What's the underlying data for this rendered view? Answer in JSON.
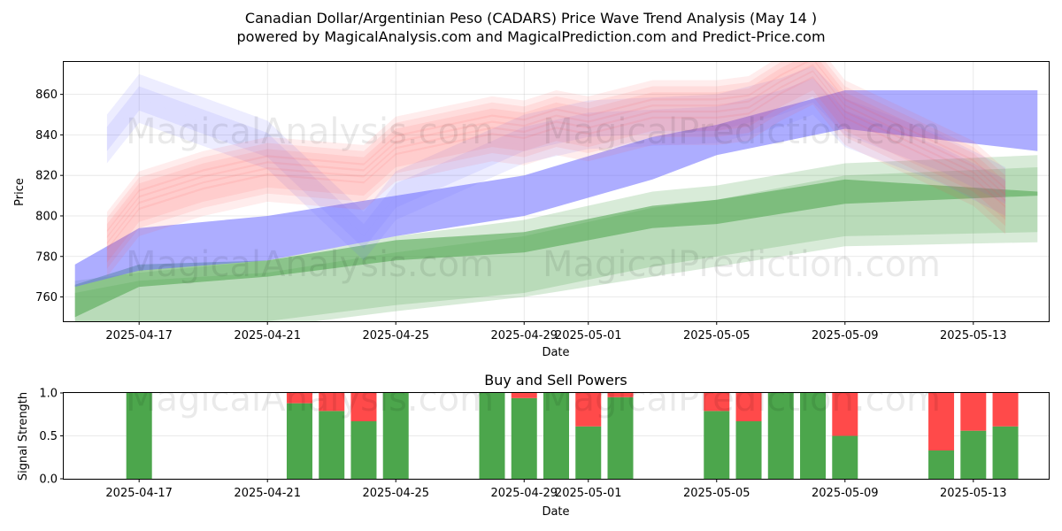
{
  "chart_data": [
    {
      "type": "area",
      "title_line1": "Canadian Dollar/Argentinian Peso (CADARS) Price Wave Trend Analysis (May 14 )",
      "title_line2": "powered by MagicalAnalysis.com and MagicalPrediction.com and Predict-Price.com",
      "xlabel": "Date",
      "ylabel": "Price",
      "x_tick_labels": [
        "2025-04-17",
        "2025-04-21",
        "2025-04-25",
        "2025-04-29",
        "2025-05-01",
        "2025-05-05",
        "2025-05-09",
        "2025-05-13"
      ],
      "x_tick_days": [
        2,
        6,
        10,
        14,
        16,
        20,
        24,
        28
      ],
      "x_range_days": [
        -0.35,
        30.35
      ],
      "y_ticks": [
        760,
        780,
        800,
        820,
        840,
        860
      ],
      "y_range": [
        748,
        876
      ],
      "watermarks": [
        "MagicalAnalysis.com",
        "MagicalPrediction.com"
      ],
      "colors": {
        "red": "#ff4a4a",
        "blue": "#6a6aff",
        "green": "#4ca64c"
      },
      "blue_band": {
        "days": [
          0,
          2,
          6,
          10,
          14,
          18,
          20,
          24,
          30
        ],
        "low": [
          765,
          773,
          778,
          790,
          800,
          818,
          830,
          843,
          832
        ],
        "high": [
          776,
          794,
          800,
          810,
          820,
          839,
          845,
          862,
          862
        ]
      },
      "green_bands": [
        {
          "days": [
            0,
            2,
            6,
            10,
            14,
            18,
            20,
            24,
            30
          ],
          "low": [
            750,
            765,
            770,
            778,
            782,
            794,
            796,
            806,
            810
          ],
          "high": [
            766,
            776,
            778,
            788,
            792,
            805,
            808,
            818,
            812
          ]
        },
        {
          "days": [
            0,
            2,
            6,
            10,
            14,
            18,
            20,
            24,
            30
          ],
          "low": [
            742,
            745,
            748,
            756,
            762,
            775,
            780,
            790,
            792
          ],
          "high": [
            768,
            772,
            778,
            790,
            798,
            812,
            815,
            826,
            830
          ]
        },
        {
          "days": [
            0,
            2,
            6,
            10,
            14,
            18,
            20,
            24,
            30
          ],
          "low": [
            740,
            742,
            745,
            753,
            760,
            770,
            775,
            785,
            787
          ],
          "high": [
            762,
            768,
            772,
            782,
            790,
            804,
            808,
            820,
            824
          ]
        }
      ],
      "red_waves": {
        "days": [
          1,
          2,
          4,
          6,
          9,
          10,
          13,
          14,
          15,
          16,
          18,
          20,
          21,
          22,
          23,
          24,
          26,
          28,
          29
        ],
        "base": [
          785,
          805,
          815,
          822,
          818,
          832,
          842,
          840,
          845,
          842,
          850,
          850,
          852,
          862,
          870,
          850,
          835,
          820,
          806
        ],
        "offsets": [
          -10,
          -6,
          -3,
          0,
          3,
          6,
          9,
          12
        ],
        "band_width": 10
      },
      "purple_waves": {
        "days": [
          1,
          2,
          6,
          9,
          10,
          14,
          16,
          20,
          22,
          23,
          24,
          27,
          29
        ],
        "base": [
          838,
          858,
          835,
          790,
          810,
          838,
          845,
          848,
          856,
          862,
          846,
          828,
          812
        ],
        "offsets": [
          -6,
          0,
          6
        ],
        "band_width": 12
      }
    },
    {
      "type": "bar",
      "title": "Buy and Sell Powers",
      "xlabel": "Date",
      "ylabel": "Signal Strength",
      "x_tick_labels": [
        "2025-04-17",
        "2025-04-21",
        "2025-04-25",
        "2025-04-29",
        "2025-05-01",
        "2025-05-05",
        "2025-05-09",
        "2025-05-13"
      ],
      "x_tick_days": [
        2,
        6,
        10,
        14,
        16,
        20,
        24,
        28
      ],
      "x_range_days": [
        -0.35,
        30.35
      ],
      "y_ticks": [
        0.0,
        0.5,
        1.0
      ],
      "y_tick_labels": [
        "0.0",
        "0.5",
        "1.0"
      ],
      "y_range": [
        0,
        1
      ],
      "colors": {
        "buy": "#4ca64c",
        "sell": "#ff4a4a"
      },
      "days": [
        2,
        7,
        8,
        9,
        10,
        13,
        14,
        15,
        16,
        17,
        20,
        21,
        22,
        23,
        24,
        27,
        28,
        29
      ],
      "buy": [
        1.0,
        0.88,
        0.79,
        0.67,
        1.0,
        1.0,
        0.94,
        1.0,
        0.61,
        0.95,
        0.79,
        0.67,
        1.0,
        1.0,
        0.5,
        0.33,
        0.56,
        0.61
      ]
    }
  ]
}
